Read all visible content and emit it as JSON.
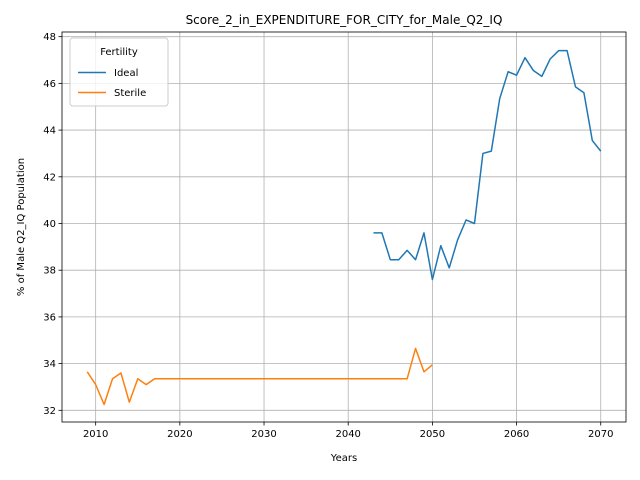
{
  "chart_data": {
    "type": "line",
    "title": "Score_2_in_EXPENDITURE_FOR_CITY_for_Male_Q2_IQ",
    "xlabel": "Years",
    "ylabel": "% of Male Q2_IQ Population",
    "xlim": [
      2006,
      2073
    ],
    "ylim": [
      31.5,
      48.2
    ],
    "xticks": [
      2010,
      2020,
      2030,
      2040,
      2050,
      2060,
      2070
    ],
    "yticks": [
      32,
      34,
      36,
      38,
      40,
      42,
      44,
      46,
      48
    ],
    "grid": true,
    "legend": {
      "title": "Fertility",
      "position": "top-left"
    },
    "series": [
      {
        "name": "Ideal",
        "color": "#1f77b4",
        "x": [
          2043,
          2044,
          2045,
          2046,
          2047,
          2048,
          2049,
          2050,
          2051,
          2052,
          2053,
          2054,
          2055,
          2056,
          2057,
          2058,
          2059,
          2060,
          2061,
          2062,
          2063,
          2064,
          2065,
          2066,
          2067,
          2068,
          2069,
          2070
        ],
        "y": [
          39.6,
          39.6,
          38.45,
          38.45,
          38.85,
          38.45,
          39.6,
          37.6,
          39.05,
          38.1,
          39.3,
          40.15,
          40.0,
          43.0,
          43.1,
          45.35,
          46.5,
          46.35,
          47.1,
          46.55,
          46.3,
          47.05,
          47.4,
          47.4,
          45.85,
          45.6,
          43.55,
          43.1
        ]
      },
      {
        "name": "Sterile",
        "color": "#ff7f0e",
        "x": [
          2009,
          2010,
          2011,
          2012,
          2013,
          2014,
          2015,
          2016,
          2017,
          2018,
          2019,
          2020,
          2021,
          2022,
          2023,
          2024,
          2025,
          2026,
          2027,
          2028,
          2029,
          2030,
          2031,
          2032,
          2033,
          2034,
          2035,
          2036,
          2037,
          2038,
          2039,
          2040,
          2041,
          2042,
          2043,
          2044,
          2045,
          2046,
          2047,
          2048,
          2049,
          2050
        ],
        "y": [
          33.65,
          33.1,
          32.25,
          33.35,
          33.6,
          32.35,
          33.35,
          33.1,
          33.35,
          33.35,
          33.35,
          33.35,
          33.35,
          33.35,
          33.35,
          33.35,
          33.35,
          33.35,
          33.35,
          33.35,
          33.35,
          33.35,
          33.35,
          33.35,
          33.35,
          33.35,
          33.35,
          33.35,
          33.35,
          33.35,
          33.35,
          33.35,
          33.35,
          33.35,
          33.35,
          33.35,
          33.35,
          33.35,
          33.35,
          34.65,
          33.65,
          33.95
        ]
      }
    ]
  }
}
